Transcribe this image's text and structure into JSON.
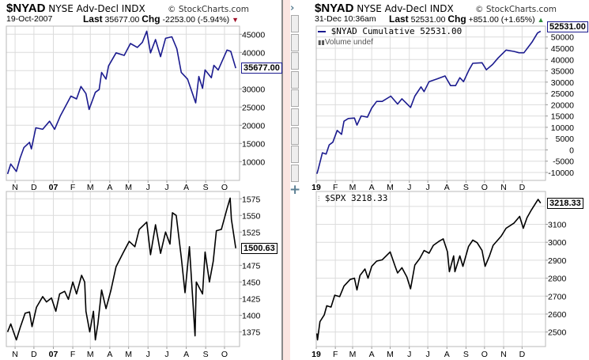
{
  "left": {
    "symbol": "$NYAD",
    "name": "NYSE Adv-Decl INDX",
    "copyright": "© StockCharts.com",
    "date": "19-Oct-2007",
    "last_label": "Last",
    "last_value": "35677.00",
    "chg_label": "Chg",
    "chg_value": "-2253.00 (-5.94%)",
    "direction_icon": "triangle-down-icon",
    "direction_color": "#a0122a"
  },
  "right": {
    "symbol": "$NYAD",
    "name": "NYSE Adv-Decl INDX",
    "copyright": "© StockCharts.com",
    "date": "31-Dec 10:36am",
    "last_label": "Last",
    "last_value": "52531.00",
    "chg_label": "Chg",
    "chg_value": "+851.00 (+1.65%)",
    "direction_icon": "triangle-up-icon",
    "direction_color": "#2e8b3a",
    "legend_main": "$NYAD Cumulative 52531.00",
    "legend_volume": "Volume undef",
    "legend_spx": "$SPX 3218.33"
  },
  "sidebar": {
    "buttons": 9,
    "expand_icon": "chevron-right-icon",
    "add_icon": "plus-icon"
  },
  "chart_data": [
    {
      "type": "line",
      "series_label": "",
      "color": "#1b1b8f",
      "last_badge": "35677.00",
      "last": 35677,
      "xlim": [
        "2006-10-18",
        "2007-10-25"
      ],
      "ylim": [
        4850,
        47240
      ],
      "yticks": [
        45000,
        40000,
        30000,
        25000,
        20000,
        15000,
        10000
      ],
      "gridlines_y": [
        45000,
        40000,
        35000,
        30000,
        25000,
        20000,
        15000,
        10000
      ],
      "xticks": [
        [
          "2006-11-01",
          "N"
        ],
        [
          "2006-12-01",
          "D"
        ],
        [
          "2007-01-01",
          "07"
        ],
        [
          "2007-02-01",
          "F"
        ],
        [
          "2007-03-01",
          "M"
        ],
        [
          "2007-04-01",
          "A"
        ],
        [
          "2007-05-01",
          "M"
        ],
        [
          "2007-06-01",
          "J"
        ],
        [
          "2007-07-01",
          "J"
        ],
        [
          "2007-08-01",
          "A"
        ],
        [
          "2007-09-01",
          "S"
        ],
        [
          "2007-10-01",
          "O"
        ]
      ],
      "grid": true,
      "points": [
        [
          "2006-10-20",
          6600
        ],
        [
          "2006-10-25",
          9350
        ],
        [
          "2006-11-03",
          7300
        ],
        [
          "2006-11-09",
          10950
        ],
        [
          "2006-11-15",
          13850
        ],
        [
          "2006-11-24",
          15300
        ],
        [
          "2006-11-27",
          13500
        ],
        [
          "2006-12-04",
          19300
        ],
        [
          "2006-12-15",
          18900
        ],
        [
          "2006-12-26",
          21100
        ],
        [
          "2007-01-03",
          18900
        ],
        [
          "2007-01-12",
          22500
        ],
        [
          "2007-01-29",
          28000
        ],
        [
          "2007-02-07",
          27250
        ],
        [
          "2007-02-14",
          30650
        ],
        [
          "2007-02-22",
          28700
        ],
        [
          "2007-02-27",
          24350
        ],
        [
          "2007-03-09",
          29050
        ],
        [
          "2007-03-15",
          29800
        ],
        [
          "2007-03-19",
          34500
        ],
        [
          "2007-03-26",
          32700
        ],
        [
          "2007-03-30",
          36300
        ],
        [
          "2007-04-11",
          39900
        ],
        [
          "2007-04-24",
          39200
        ],
        [
          "2007-05-04",
          42450
        ],
        [
          "2007-05-15",
          41400
        ],
        [
          "2007-05-23",
          42800
        ],
        [
          "2007-05-30",
          45850
        ],
        [
          "2007-06-05",
          39900
        ],
        [
          "2007-06-13",
          43550
        ],
        [
          "2007-06-21",
          38850
        ],
        [
          "2007-06-29",
          43900
        ],
        [
          "2007-07-09",
          44300
        ],
        [
          "2007-07-17",
          41000
        ],
        [
          "2007-07-24",
          34500
        ],
        [
          "2007-08-03",
          32700
        ],
        [
          "2007-08-16",
          26150
        ],
        [
          "2007-08-21",
          33400
        ],
        [
          "2007-08-27",
          30150
        ],
        [
          "2007-08-31",
          35200
        ],
        [
          "2007-09-10",
          33050
        ],
        [
          "2007-09-14",
          36450
        ],
        [
          "2007-09-21",
          35200
        ],
        [
          "2007-10-05",
          40650
        ],
        [
          "2007-10-11",
          40300
        ],
        [
          "2007-10-19",
          35677
        ]
      ]
    },
    {
      "type": "line",
      "series_label": "",
      "color": "#000000",
      "last_badge": "1500.63",
      "last": 1500.63,
      "xlim": [
        "2006-10-18",
        "2007-10-25"
      ],
      "ylim": [
        1353,
        1586
      ],
      "yticks": [
        1575,
        1550,
        1525,
        1475,
        1450,
        1425,
        1400,
        1375
      ],
      "gridlines_y": [
        1575,
        1550,
        1525,
        1500,
        1475,
        1450,
        1425,
        1400,
        1375
      ],
      "xticks": [
        [
          "2006-11-01",
          "N"
        ],
        [
          "2006-12-01",
          "D"
        ],
        [
          "2007-01-01",
          "07"
        ],
        [
          "2007-02-01",
          "F"
        ],
        [
          "2007-03-01",
          "M"
        ],
        [
          "2007-04-01",
          "A"
        ],
        [
          "2007-05-01",
          "M"
        ],
        [
          "2007-06-01",
          "J"
        ],
        [
          "2007-07-01",
          "J"
        ],
        [
          "2007-08-01",
          "A"
        ],
        [
          "2007-09-01",
          "S"
        ],
        [
          "2007-10-01",
          "O"
        ]
      ],
      "grid": true,
      "points": [
        [
          "2006-10-20",
          1375
        ],
        [
          "2006-10-25",
          1387
        ],
        [
          "2006-11-03",
          1363
        ],
        [
          "2006-11-09",
          1381
        ],
        [
          "2006-11-17",
          1403
        ],
        [
          "2006-11-24",
          1405
        ],
        [
          "2006-11-28",
          1383
        ],
        [
          "2006-12-05",
          1412
        ],
        [
          "2006-12-15",
          1428
        ],
        [
          "2006-12-21",
          1420
        ],
        [
          "2006-12-29",
          1426
        ],
        [
          "2007-01-05",
          1406
        ],
        [
          "2007-01-11",
          1432
        ],
        [
          "2007-01-19",
          1436
        ],
        [
          "2007-01-25",
          1424
        ],
        [
          "2007-02-01",
          1450
        ],
        [
          "2007-02-07",
          1432
        ],
        [
          "2007-02-15",
          1460
        ],
        [
          "2007-02-20",
          1450
        ],
        [
          "2007-02-22",
          1406
        ],
        [
          "2007-02-28",
          1375
        ],
        [
          "2007-03-06",
          1406
        ],
        [
          "2007-03-09",
          1363
        ],
        [
          "2007-03-13",
          1387
        ],
        [
          "2007-03-19",
          1438
        ],
        [
          "2007-03-26",
          1410
        ],
        [
          "2007-04-03",
          1438
        ],
        [
          "2007-04-11",
          1473
        ],
        [
          "2007-04-23",
          1495
        ],
        [
          "2007-05-02",
          1511
        ],
        [
          "2007-05-11",
          1503
        ],
        [
          "2007-05-18",
          1529
        ],
        [
          "2007-05-30",
          1540
        ],
        [
          "2007-06-05",
          1491
        ],
        [
          "2007-06-13",
          1536
        ],
        [
          "2007-06-21",
          1493
        ],
        [
          "2007-06-29",
          1525
        ],
        [
          "2007-07-06",
          1507
        ],
        [
          "2007-07-10",
          1554
        ],
        [
          "2007-07-16",
          1550
        ],
        [
          "2007-07-24",
          1487
        ],
        [
          "2007-07-30",
          1434
        ],
        [
          "2007-08-06",
          1503
        ],
        [
          "2007-08-15",
          1369
        ],
        [
          "2007-08-17",
          1450
        ],
        [
          "2007-08-27",
          1432
        ],
        [
          "2007-08-31",
          1495
        ],
        [
          "2007-09-07",
          1450
        ],
        [
          "2007-09-13",
          1481
        ],
        [
          "2007-09-18",
          1527
        ],
        [
          "2007-09-26",
          1529
        ],
        [
          "2007-10-05",
          1560
        ],
        [
          "2007-10-10",
          1576
        ],
        [
          "2007-10-12",
          1544
        ],
        [
          "2007-10-19",
          1500.63
        ]
      ]
    },
    {
      "type": "line",
      "series_label": "$NYAD Cumulative",
      "color": "#1b1b8f",
      "last_badge": "52531.00",
      "last": 52531,
      "xlim": [
        "2019-01-01",
        "2020-01-08"
      ],
      "ylim": [
        -13500,
        54800
      ],
      "yticks": [
        50000,
        45000,
        40000,
        35000,
        30000,
        25000,
        20000,
        15000,
        10000,
        5000,
        0,
        -5000,
        -10000
      ],
      "gridlines_y": [
        50000,
        45000,
        40000,
        35000,
        30000,
        25000,
        20000,
        15000,
        10000,
        5000,
        0,
        -5000,
        -10000
      ],
      "xticks": [
        [
          "2019-01-01",
          "19"
        ],
        [
          "2019-02-01",
          "F"
        ],
        [
          "2019-03-01",
          "M"
        ],
        [
          "2019-04-01",
          "A"
        ],
        [
          "2019-05-01",
          "M"
        ],
        [
          "2019-06-01",
          "J"
        ],
        [
          "2019-07-01",
          "J"
        ],
        [
          "2019-08-01",
          "A"
        ],
        [
          "2019-09-01",
          "S"
        ],
        [
          "2019-10-01",
          "O"
        ],
        [
          "2019-11-01",
          "N"
        ],
        [
          "2019-12-01",
          "D"
        ]
      ],
      "grid": true,
      "points": [
        [
          "2019-01-02",
          -10580
        ],
        [
          "2019-01-04",
          -8830
        ],
        [
          "2019-01-11",
          -1260
        ],
        [
          "2019-01-17",
          -1840
        ],
        [
          "2019-01-22",
          2240
        ],
        [
          "2019-01-28",
          3400
        ],
        [
          "2019-02-04",
          8640
        ],
        [
          "2019-02-11",
          6900
        ],
        [
          "2019-02-15",
          12700
        ],
        [
          "2019-02-22",
          13900
        ],
        [
          "2019-03-04",
          14100
        ],
        [
          "2019-03-08",
          11000
        ],
        [
          "2019-03-15",
          15050
        ],
        [
          "2019-03-25",
          14500
        ],
        [
          "2019-04-01",
          18550
        ],
        [
          "2019-04-09",
          21450
        ],
        [
          "2019-04-18",
          21450
        ],
        [
          "2019-05-02",
          23800
        ],
        [
          "2019-05-13",
          20300
        ],
        [
          "2019-05-20",
          22600
        ],
        [
          "2019-06-03",
          18800
        ],
        [
          "2019-06-10",
          23800
        ],
        [
          "2019-06-20",
          27900
        ],
        [
          "2019-06-25",
          25800
        ],
        [
          "2019-07-03",
          30200
        ],
        [
          "2019-07-16",
          31400
        ],
        [
          "2019-07-29",
          32750
        ],
        [
          "2019-08-07",
          28450
        ],
        [
          "2019-08-15",
          28450
        ],
        [
          "2019-08-22",
          31950
        ],
        [
          "2019-08-28",
          30200
        ],
        [
          "2019-09-06",
          35450
        ],
        [
          "2019-09-12",
          38350
        ],
        [
          "2019-09-27",
          38600
        ],
        [
          "2019-10-04",
          35450
        ],
        [
          "2019-10-14",
          37800
        ],
        [
          "2019-10-23",
          40700
        ],
        [
          "2019-11-05",
          44200
        ],
        [
          "2019-11-18",
          43600
        ],
        [
          "2019-11-26",
          43000
        ],
        [
          "2019-12-04",
          43000
        ],
        [
          "2019-12-17",
          47670
        ],
        [
          "2019-12-26",
          51750
        ],
        [
          "2019-12-31",
          52531
        ]
      ]
    },
    {
      "type": "line",
      "series_label": "$SPX",
      "color": "#000000",
      "last_badge": "3218.33",
      "last": 3218.33,
      "xlim": [
        "2019-01-01",
        "2020-01-08"
      ],
      "ylim": [
        2419,
        3283
      ],
      "yticks": [
        3100,
        3000,
        2900,
        2800,
        2700,
        2600,
        2500
      ],
      "gridlines_y": [
        3200,
        3100,
        3000,
        2900,
        2800,
        2700,
        2600,
        2500
      ],
      "xticks": [
        [
          "2019-01-01",
          "19"
        ],
        [
          "2019-02-01",
          "F"
        ],
        [
          "2019-03-01",
          "M"
        ],
        [
          "2019-04-01",
          "A"
        ],
        [
          "2019-05-01",
          "M"
        ],
        [
          "2019-06-01",
          "J"
        ],
        [
          "2019-07-01",
          "J"
        ],
        [
          "2019-08-01",
          "A"
        ],
        [
          "2019-09-01",
          "S"
        ],
        [
          "2019-10-01",
          "O"
        ],
        [
          "2019-11-01",
          "N"
        ],
        [
          "2019-12-01",
          "D"
        ]
      ],
      "grid": true,
      "points": [
        [
          "2019-01-02",
          2492
        ],
        [
          "2019-01-03",
          2456
        ],
        [
          "2019-01-07",
          2558
        ],
        [
          "2019-01-14",
          2595
        ],
        [
          "2019-01-18",
          2646
        ],
        [
          "2019-01-25",
          2639
        ],
        [
          "2019-01-31",
          2705
        ],
        [
          "2019-02-08",
          2697
        ],
        [
          "2019-02-15",
          2756
        ],
        [
          "2019-02-25",
          2793
        ],
        [
          "2019-03-04",
          2800
        ],
        [
          "2019-03-08",
          2734
        ],
        [
          "2019-03-13",
          2815
        ],
        [
          "2019-03-21",
          2851
        ],
        [
          "2019-03-26",
          2800
        ],
        [
          "2019-04-01",
          2866
        ],
        [
          "2019-04-09",
          2895
        ],
        [
          "2019-04-18",
          2902
        ],
        [
          "2019-05-01",
          2946
        ],
        [
          "2019-05-09",
          2866
        ],
        [
          "2019-05-13",
          2829
        ],
        [
          "2019-05-20",
          2858
        ],
        [
          "2019-05-28",
          2807
        ],
        [
          "2019-06-03",
          2741
        ],
        [
          "2019-06-10",
          2873
        ],
        [
          "2019-06-18",
          2910
        ],
        [
          "2019-06-25",
          2954
        ],
        [
          "2019-07-03",
          2939
        ],
        [
          "2019-07-10",
          2983
        ],
        [
          "2019-07-19",
          3005
        ],
        [
          "2019-07-26",
          3019
        ],
        [
          "2019-08-02",
          2946
        ],
        [
          "2019-08-05",
          2836
        ],
        [
          "2019-08-12",
          2924
        ],
        [
          "2019-08-14",
          2836
        ],
        [
          "2019-08-22",
          2924
        ],
        [
          "2019-08-27",
          2866
        ],
        [
          "2019-09-05",
          2976
        ],
        [
          "2019-09-12",
          3012
        ],
        [
          "2019-09-19",
          2998
        ],
        [
          "2019-09-27",
          2954
        ],
        [
          "2019-10-02",
          2866
        ],
        [
          "2019-10-09",
          2924
        ],
        [
          "2019-10-15",
          2983
        ],
        [
          "2019-10-28",
          3034
        ],
        [
          "2019-11-05",
          3078
        ],
        [
          "2019-11-18",
          3107
        ],
        [
          "2019-11-27",
          3144
        ],
        [
          "2019-12-03",
          3078
        ],
        [
          "2019-12-09",
          3137
        ],
        [
          "2019-12-16",
          3180
        ],
        [
          "2019-12-27",
          3239
        ],
        [
          "2019-12-31",
          3218.33
        ]
      ]
    }
  ]
}
